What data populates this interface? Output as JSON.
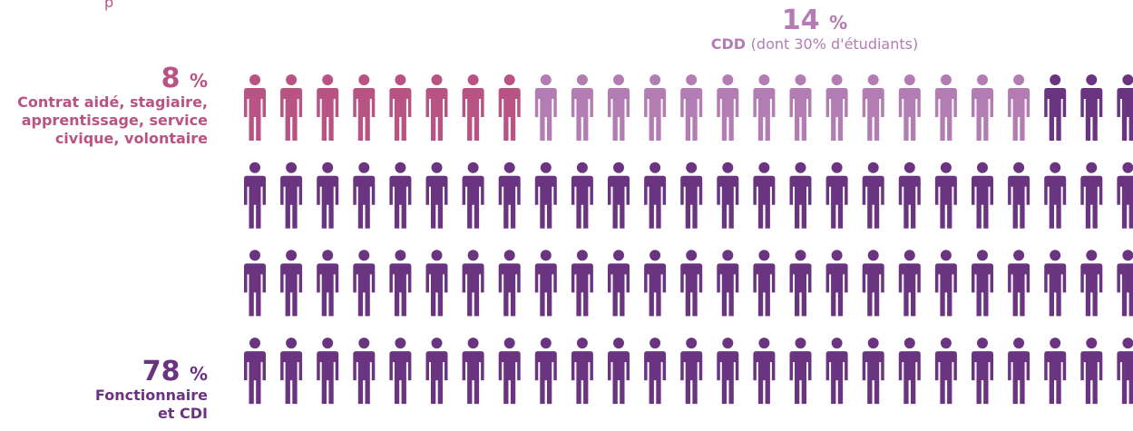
{
  "partial_top_text": "p",
  "colors": {
    "aide": "#b95383",
    "cdd": "#b37db4",
    "cdi": "#6b3480"
  },
  "chart_data": {
    "type": "pictogram",
    "rows": 4,
    "columns": 25,
    "total_icons": 100,
    "segments": [
      {
        "key": "aide",
        "percent": "8",
        "unit": "%",
        "label": "Contrat aidé, stagiaire, apprentissage, service civique, volontaire",
        "label_lines": [
          "Contrat aidé, stagiaire,",
          "apprentissage, service",
          "civique, volontaire"
        ],
        "icons": 8,
        "color": "#b95383"
      },
      {
        "key": "cdd",
        "percent": "14",
        "unit": "%",
        "label": "CDD",
        "sublabel": "(dont 30% d'étudiants)",
        "icons": 14,
        "color": "#b37db4"
      },
      {
        "key": "cdi",
        "percent": "78",
        "unit": "%",
        "label": "Fonctionnaire et CDI",
        "label_lines": [
          "Fonctionnaire",
          "et CDI"
        ],
        "icons": 78,
        "color": "#6b3480"
      }
    ]
  }
}
